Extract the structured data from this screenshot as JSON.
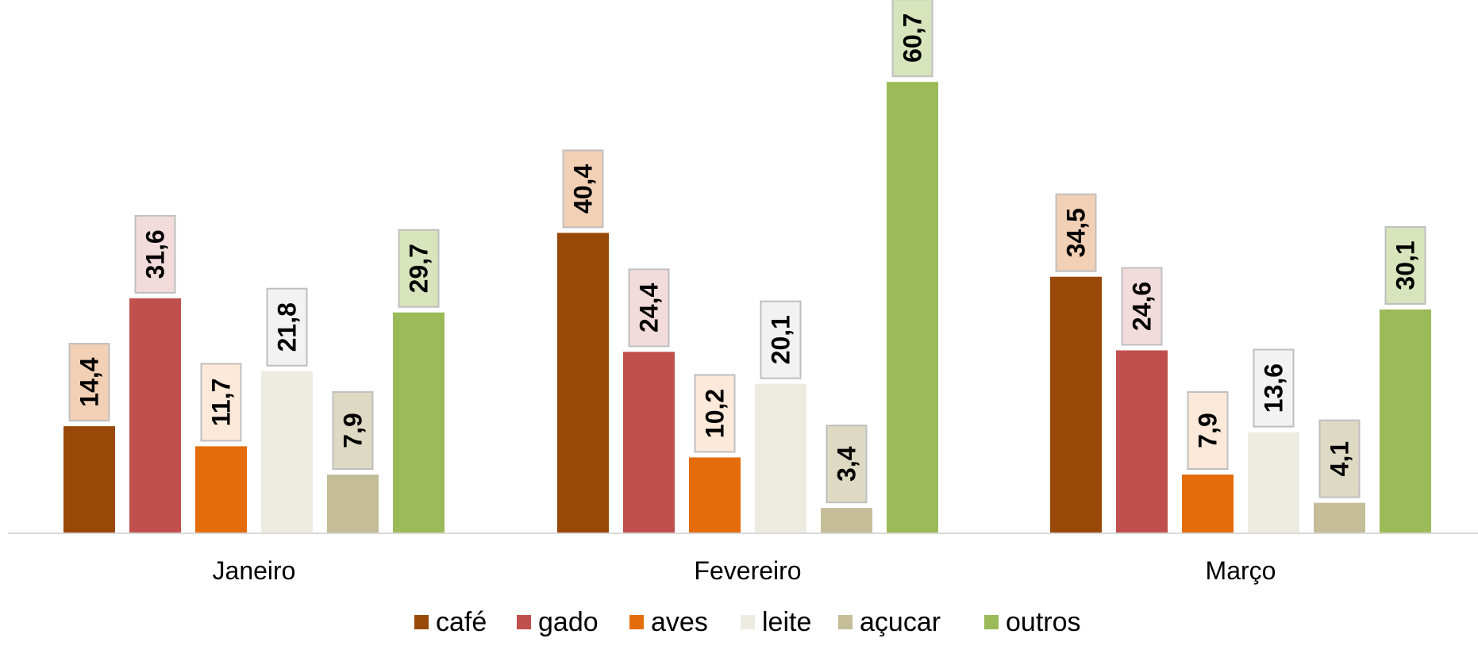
{
  "chart_data": {
    "type": "bar",
    "categories": [
      "Janeiro",
      "Fevereiro",
      "Março"
    ],
    "series": [
      {
        "name": "café",
        "values": [
          "14,4",
          "40,4",
          "34,5"
        ],
        "color": "#984807",
        "label_fill": "#F2D0B5"
      },
      {
        "name": "gado",
        "values": [
          "31,6",
          "24,4",
          "24,6"
        ],
        "color": "#C0504D",
        "label_fill": "#F2DCDB"
      },
      {
        "name": "aves",
        "values": [
          "11,7",
          "10,2",
          "7,9"
        ],
        "color": "#E46C0A",
        "label_fill": "#FDE9D9"
      },
      {
        "name": "leite",
        "values": [
          "21,8",
          "20,1",
          "13,6"
        ],
        "color": "#EEECE1",
        "label_fill": "#F2F2F2"
      },
      {
        "name": "açucar",
        "values": [
          "7,9",
          "3,4",
          "4,1"
        ],
        "color": "#C4BD97",
        "label_fill": "#DDD9C3"
      },
      {
        "name": "outros",
        "values": [
          "29,7",
          "60,7",
          "30,1"
        ],
        "color": "#9BBB59",
        "label_fill": "#D7E4BC"
      }
    ],
    "ylim": [
      0,
      70
    ],
    "grid": false,
    "legend_position": "bottom",
    "axis_color": "#D9D9D9"
  }
}
